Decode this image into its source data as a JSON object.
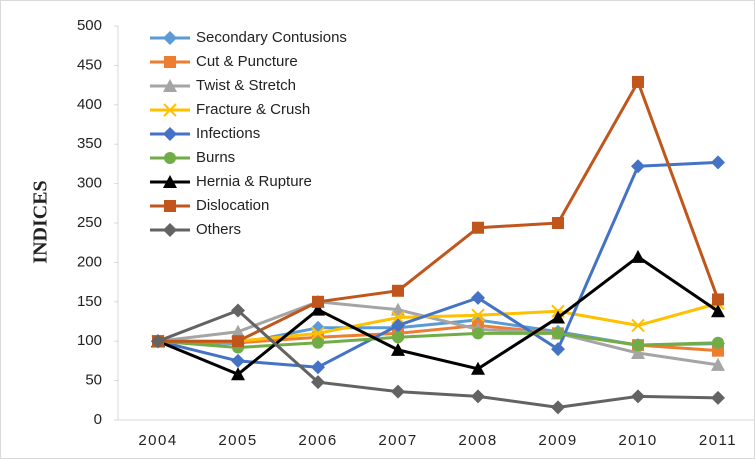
{
  "chart_data": {
    "type": "line",
    "ylabel": "INDICES",
    "categories": [
      "2004",
      "2005",
      "2006",
      "2007",
      "2008",
      "2009",
      "2010",
      "2011"
    ],
    "ylim": [
      0,
      500
    ],
    "yticks": [
      0,
      50,
      100,
      150,
      200,
      250,
      300,
      350,
      400,
      450,
      500
    ],
    "grid": false,
    "legend": "upper left",
    "series": [
      {
        "name": "Secondary Contusions",
        "color": "#5b9bd5",
        "marker": "diamond",
        "values": [
          100,
          97,
          117,
          117,
          127,
          112,
          95,
          97
        ]
      },
      {
        "name": "Cut & Puncture",
        "color": "#ed7d31",
        "marker": "square",
        "values": [
          100,
          98,
          105,
          110,
          120,
          110,
          95,
          88
        ]
      },
      {
        "name": "Twist & Stretch",
        "color": "#a5a5a5",
        "marker": "triangle",
        "values": [
          100,
          112,
          150,
          140,
          115,
          110,
          85,
          70
        ]
      },
      {
        "name": "Fracture & Crush",
        "color": "#ffc000",
        "marker": "x",
        "values": [
          100,
          100,
          110,
          130,
          133,
          138,
          120,
          148
        ]
      },
      {
        "name": "Infections",
        "color": "#4472c4",
        "marker": "diamond",
        "values": [
          100,
          75,
          67,
          120,
          155,
          90,
          322,
          327
        ]
      },
      {
        "name": "Burns",
        "color": "#70ad47",
        "marker": "circle",
        "values": [
          100,
          92,
          98,
          105,
          110,
          110,
          95,
          98
        ]
      },
      {
        "name": "Hernia & Rupture",
        "color": "#000000",
        "marker": "triangle",
        "values": [
          100,
          58,
          140,
          89,
          65,
          130,
          207,
          138
        ]
      },
      {
        "name": "Dislocation",
        "color": "#c0561c",
        "marker": "square",
        "values": [
          100,
          100,
          150,
          164,
          244,
          250,
          429,
          153
        ]
      },
      {
        "name": "Others",
        "color": "#636363",
        "marker": "diamond",
        "values": [
          100,
          139,
          48,
          36,
          30,
          16,
          30,
          28
        ]
      }
    ]
  }
}
